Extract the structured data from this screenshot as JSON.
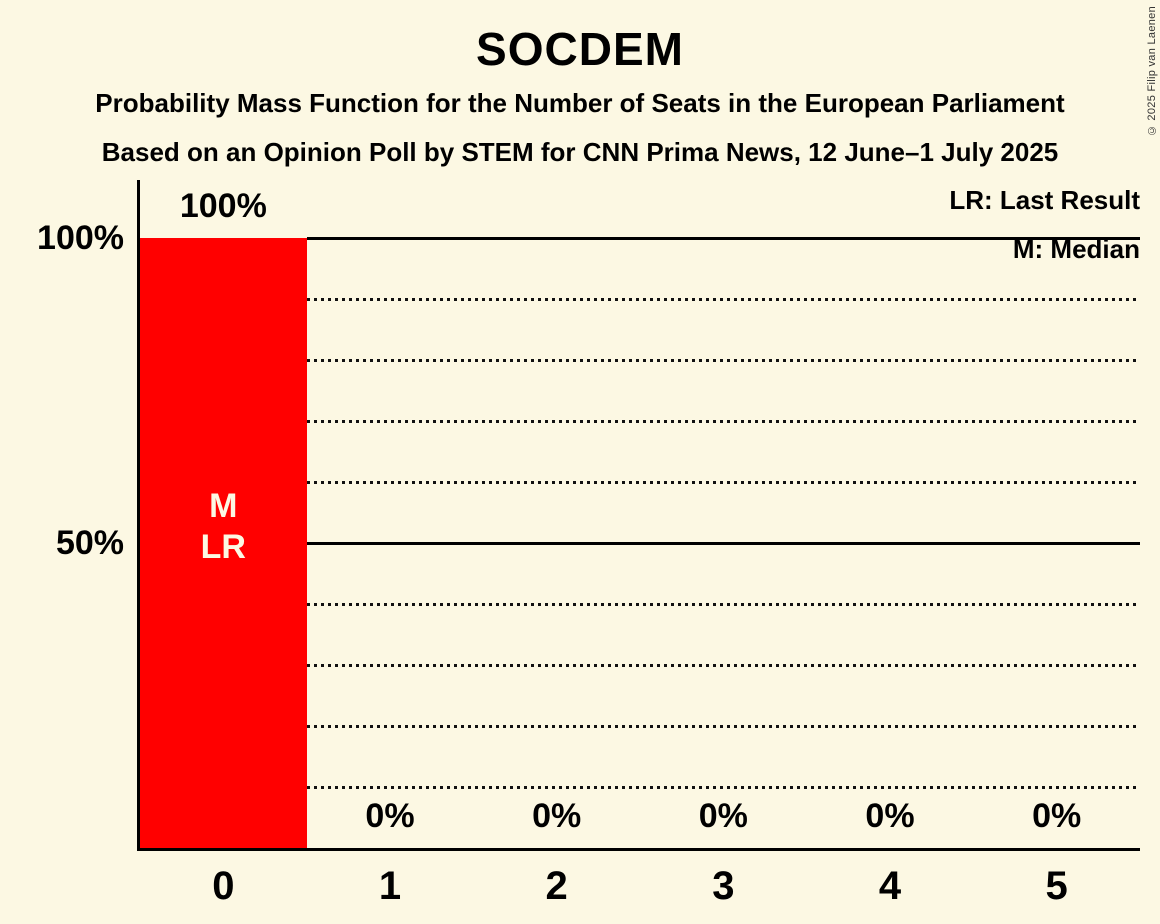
{
  "title": "SOCDEM",
  "subtitle_line1": "Probability Mass Function for the Number of Seats in the European Parliament",
  "subtitle_line2": "Based on an Opinion Poll by STEM for CNN Prima News, 12 June–1 July 2025",
  "copyright": "© 2025 Filip van Laenen",
  "legend": {
    "last_result": "LR: Last Result",
    "median": "M: Median"
  },
  "colors": {
    "background": "#FCF8E3",
    "bar": "#FF0000",
    "text": "#000000",
    "inside_bar_label": "#FCF8E3"
  },
  "chart_data": {
    "type": "bar",
    "title": "SOCDEM",
    "categories": [
      "0",
      "1",
      "2",
      "3",
      "4",
      "5"
    ],
    "values": [
      100,
      0,
      0,
      0,
      0,
      0
    ],
    "bar_value_labels": [
      "100%",
      "0%",
      "0%",
      "0%",
      "0%",
      "0%"
    ],
    "bar_annotations": [
      "M\nLR",
      "",
      "",
      "",
      "",
      ""
    ],
    "median_category": "0",
    "last_result_category": "0",
    "xlabel": "",
    "ylabel": "",
    "ylim": [
      0,
      110
    ],
    "y_ticks": [
      {
        "pct": 100,
        "label": "100%"
      },
      {
        "pct": 50,
        "label": "50%"
      }
    ],
    "gridlines_solid_pct": [
      100,
      50
    ],
    "gridlines_dotted_pct": [
      90,
      80,
      70,
      60,
      40,
      30,
      20,
      10
    ],
    "grid_on": true,
    "legend_position": "top-right"
  }
}
